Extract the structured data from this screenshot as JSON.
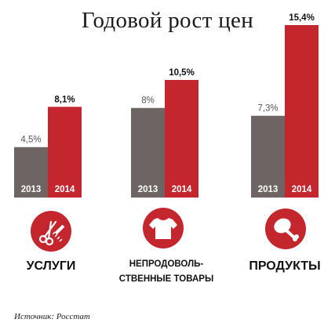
{
  "title": "Годовой рост цен",
  "chart_data": {
    "type": "bar",
    "categories": [
      "УСЛУГИ",
      "НЕПРОДОВОЛЬ-СТВЕННЫЕ ТОВАРЫ",
      "ПРОДУКТЫ"
    ],
    "series": [
      {
        "name": "2013",
        "values": [
          4.5,
          8.0,
          7.3
        ],
        "labels": [
          "4,5%",
          "8%",
          "7,3%"
        ],
        "color": "#6d6463"
      },
      {
        "name": "2014",
        "values": [
          8.1,
          10.5,
          15.4
        ],
        "labels": [
          "8,1%",
          "10,5%",
          "15,4%"
        ],
        "color": "#c4262e"
      }
    ],
    "ylim": [
      0,
      15.4
    ],
    "grid": false,
    "legend": "none"
  },
  "categories": {
    "services": "УСЛУГИ",
    "goods_line1": "НЕПРОДОВОЛЬ-",
    "goods_line2": "СТВЕННЫЕ ТОВАРЫ",
    "food": "ПРОДУКТЫ"
  },
  "icons": {
    "services": "scissors-comb-icon",
    "goods": "tshirt-icon",
    "food": "chicken-leg-icon"
  },
  "source": "Источник: Росстат"
}
